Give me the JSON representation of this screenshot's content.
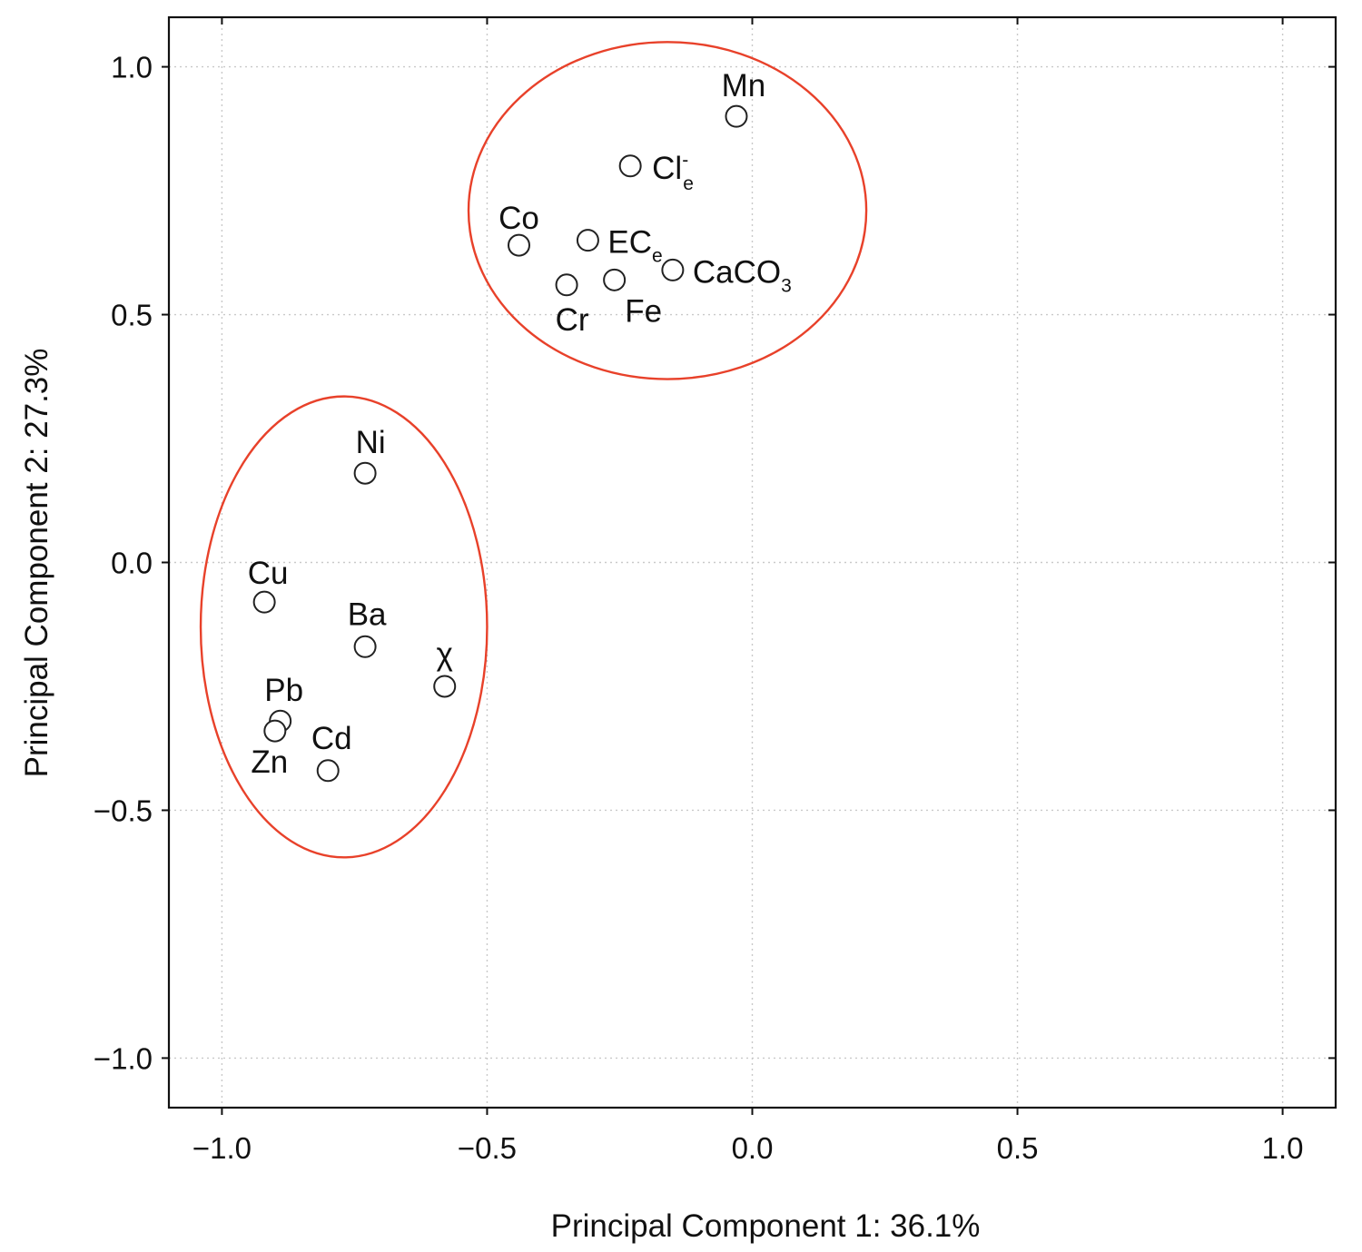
{
  "colors": {
    "cluster": "#e8412a",
    "text": "#111111",
    "marker_stroke": "#222222"
  },
  "chart_data": {
    "type": "scatter",
    "title": "",
    "xlabel": "Principal Component 1: 36.1%",
    "ylabel": "Principal Component 2: 27.3%",
    "xlim": [
      -1.1,
      1.1
    ],
    "ylim": [
      -1.1,
      1.1
    ],
    "grid": true,
    "x_ticks": [
      -1.0,
      -0.5,
      0.0,
      0.5,
      1.0
    ],
    "y_ticks": [
      -1.0,
      -0.5,
      0.0,
      0.5,
      1.0
    ],
    "x_tick_labels": [
      "−1.0",
      "−0.5",
      "0.0",
      "0.5",
      "1.0"
    ],
    "y_tick_labels": [
      "−1.0",
      "−0.5",
      "0.0",
      "0.5",
      "1.0"
    ],
    "points": [
      {
        "id": "mn",
        "label": "Mn",
        "x": -0.03,
        "y": 0.9
      },
      {
        "id": "cl",
        "label": "Cl",
        "sup": "-",
        "sub": "e",
        "x": -0.23,
        "y": 0.8
      },
      {
        "id": "co",
        "label": "Co",
        "x": -0.44,
        "y": 0.64
      },
      {
        "id": "ece",
        "label": "EC",
        "sub": "e",
        "x": -0.31,
        "y": 0.65
      },
      {
        "id": "caco3",
        "label": "CaCO",
        "sub": "3",
        "x": -0.15,
        "y": 0.59
      },
      {
        "id": "fe",
        "label": "Fe",
        "x": -0.26,
        "y": 0.57
      },
      {
        "id": "cr",
        "label": "Cr",
        "x": -0.35,
        "y": 0.56
      },
      {
        "id": "ni",
        "label": "Ni",
        "x": -0.73,
        "y": 0.18
      },
      {
        "id": "cu",
        "label": "Cu",
        "x": -0.92,
        "y": -0.08
      },
      {
        "id": "ba",
        "label": "Ba",
        "x": -0.73,
        "y": -0.17
      },
      {
        "id": "chi",
        "label": "χ",
        "x": -0.58,
        "y": -0.25
      },
      {
        "id": "pb",
        "label": "Pb",
        "x": -0.89,
        "y": -0.32
      },
      {
        "id": "zn",
        "label": "Zn",
        "x": -0.9,
        "y": -0.34
      },
      {
        "id": "cd",
        "label": "Cd",
        "x": -0.8,
        "y": -0.42
      }
    ],
    "clusters": [
      {
        "id": "cluster-top",
        "cx": -0.16,
        "cy": 0.71,
        "rx": 0.375,
        "ry": 0.34
      },
      {
        "id": "cluster-bottom",
        "cx": -0.77,
        "cy": -0.13,
        "rx": 0.27,
        "ry": 0.465
      }
    ]
  }
}
